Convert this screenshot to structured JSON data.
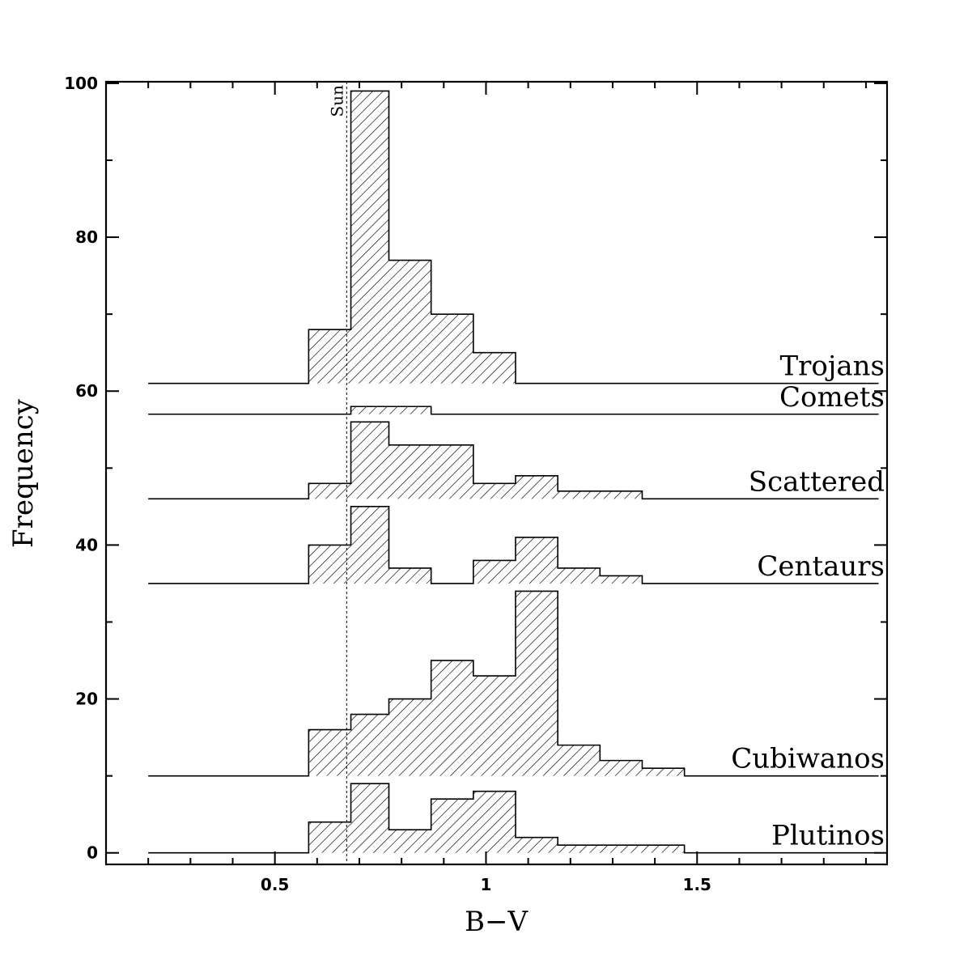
{
  "chart_data": {
    "type": "bar",
    "subtype": "stacked-offset-histogram",
    "title": "",
    "xlabel": "B−V",
    "ylabel": "Frequency",
    "xlim": [
      0.1,
      1.95
    ],
    "ylim": [
      -1.5,
      100.2
    ],
    "x_ticks": [
      0.5,
      1,
      1.5
    ],
    "x_tick_labels": [
      "0.5",
      "1",
      "1.5"
    ],
    "y_ticks": [
      0,
      20,
      40,
      60,
      80,
      100
    ],
    "y_tick_labels": [
      "0",
      "20",
      "40",
      "60",
      "80",
      "100"
    ],
    "grid": false,
    "reference_line": {
      "x": 0.67,
      "label": "Sun",
      "style": "dotted"
    },
    "fill_pattern": "diagonal-hatch",
    "series": [
      {
        "name": "Plutinos",
        "baseline": 0,
        "line_start": 0.2,
        "line_end": 1.93,
        "edges": [
          0.58,
          0.68,
          0.77,
          0.87,
          0.97,
          1.07,
          1.17,
          1.27,
          1.37,
          1.47
        ],
        "levels": [
          4,
          9,
          3,
          7,
          8,
          2,
          1,
          1,
          1
        ]
      },
      {
        "name": "Cubiwanos",
        "baseline": 10,
        "line_start": 0.2,
        "line_end": 1.93,
        "edges": [
          0.58,
          0.68,
          0.77,
          0.87,
          0.97,
          1.07,
          1.17,
          1.27,
          1.37,
          1.47
        ],
        "levels": [
          16,
          18,
          20,
          25,
          23,
          34,
          14,
          12,
          11
        ]
      },
      {
        "name": "Centaurs",
        "baseline": 35,
        "line_start": 0.2,
        "line_end": 1.93,
        "edges": [
          0.58,
          0.68,
          0.77,
          0.87,
          0.97,
          1.07,
          1.17,
          1.27,
          1.37
        ],
        "levels": [
          40,
          45,
          37,
          35,
          38,
          41,
          37,
          36
        ]
      },
      {
        "name": "Scattered",
        "baseline": 46,
        "line_start": 0.2,
        "line_end": 1.93,
        "edges": [
          0.58,
          0.68,
          0.77,
          0.87,
          0.97,
          1.07,
          1.17,
          1.27,
          1.37
        ],
        "levels": [
          48,
          56,
          53,
          53,
          48,
          49,
          47,
          47
        ]
      },
      {
        "name": "Comets",
        "baseline": 57,
        "line_start": 0.2,
        "line_end": 1.93,
        "edges": [
          0.68,
          0.87
        ],
        "levels": [
          58
        ]
      },
      {
        "name": "Trojans",
        "baseline": 61,
        "line_start": 0.2,
        "line_end": 1.93,
        "edges": [
          0.58,
          0.68,
          0.77,
          0.87,
          0.97,
          1.07
        ],
        "levels": [
          68,
          99,
          77,
          70,
          65
        ]
      }
    ]
  }
}
